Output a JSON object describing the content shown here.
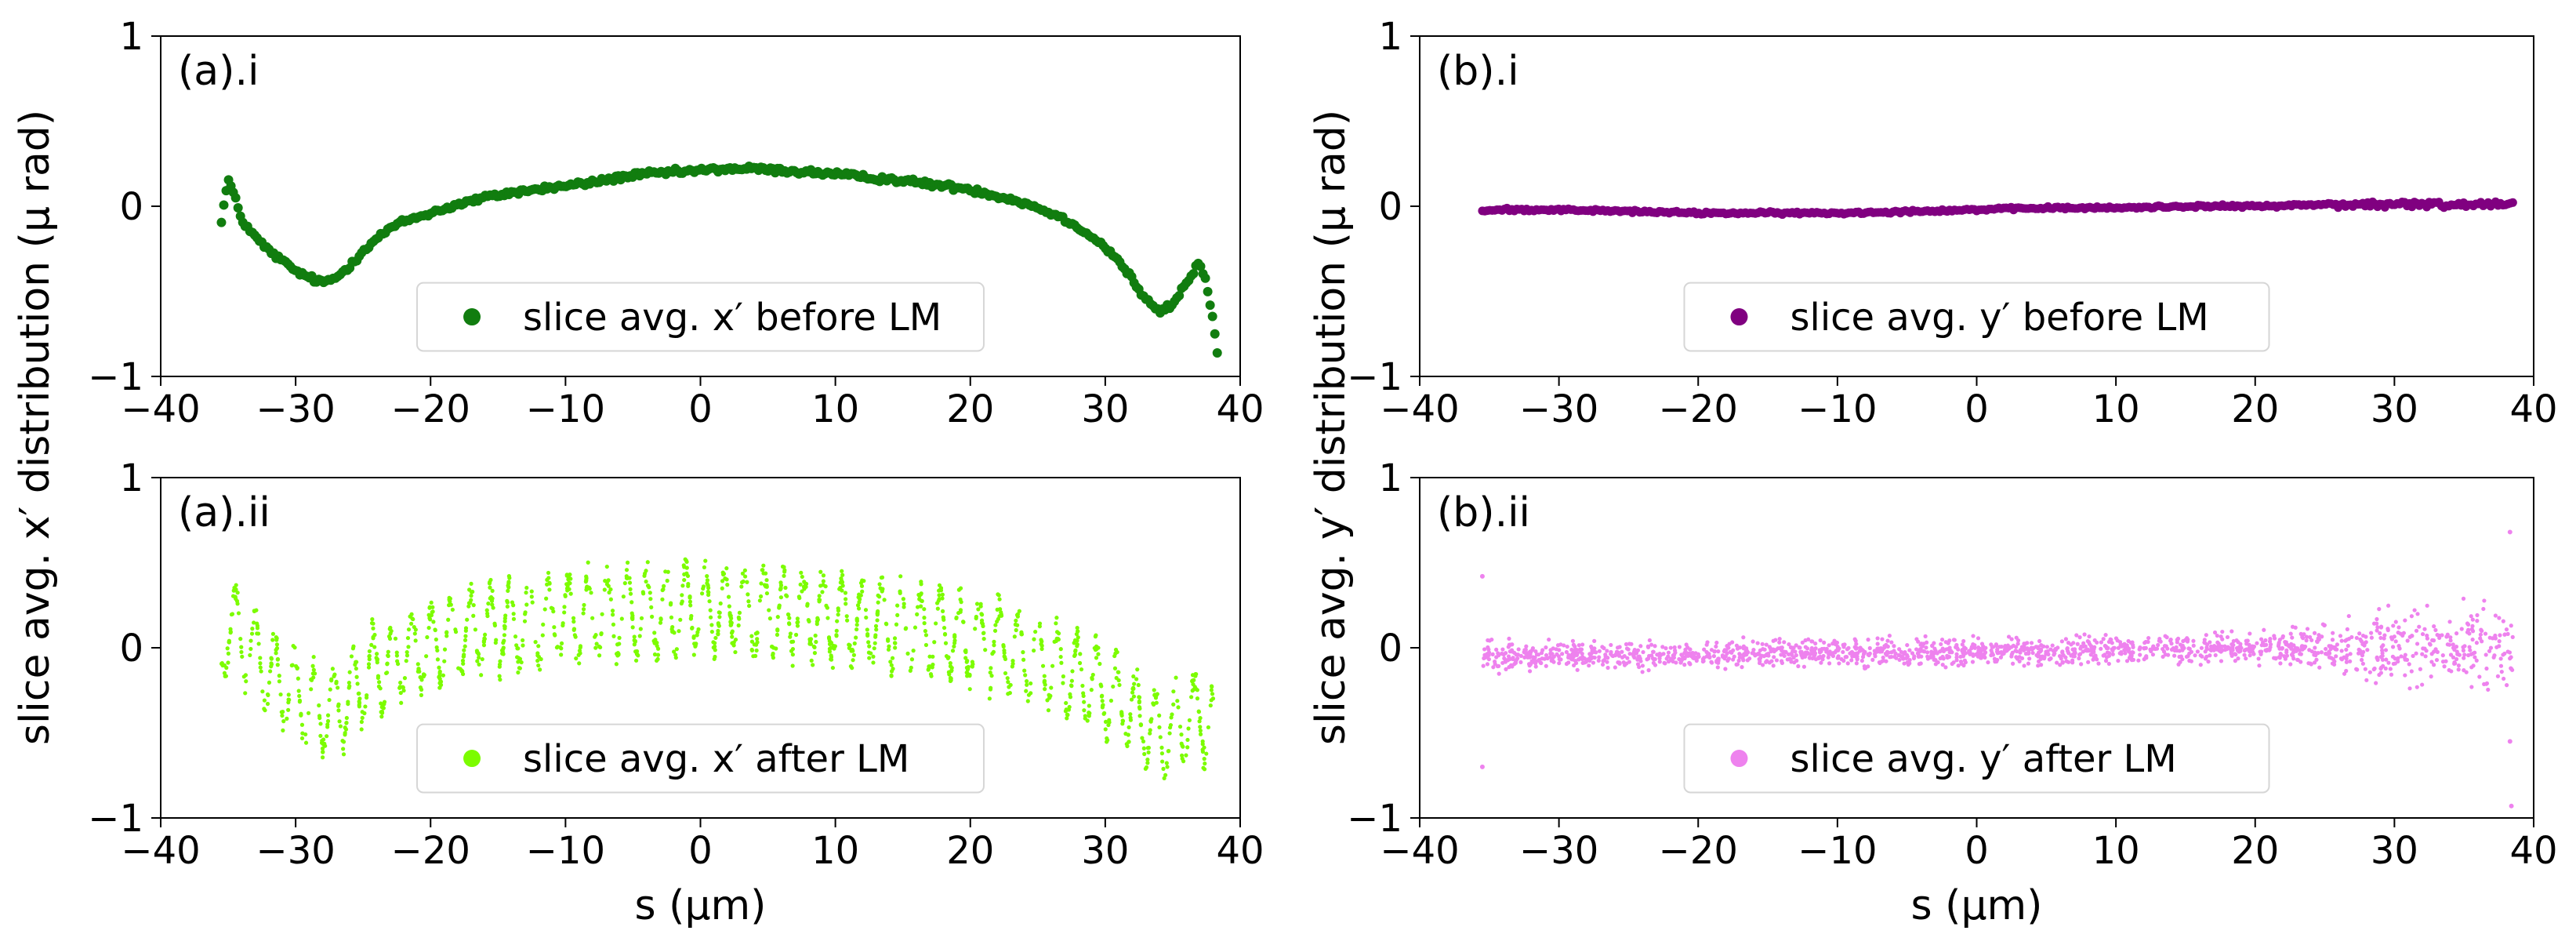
{
  "chart_data": [
    {
      "id": "a_i",
      "type": "scatter",
      "tag": "(a).i",
      "legend": "slice avg. x′ before LM",
      "legend_position": "lower-center",
      "color": "#117d0f",
      "marker": "dot-medium",
      "xlim": [
        -40,
        40
      ],
      "ylim": [
        -1,
        1
      ],
      "xticks": [
        "−40",
        "−30",
        "−20",
        "−10",
        "0",
        "10",
        "20",
        "30",
        "40"
      ],
      "yticks": [
        "−1",
        "0",
        "1"
      ],
      "x": [
        -35.5,
        -35.0,
        -34.5,
        -34.0,
        -33.0,
        -32.0,
        -31.0,
        -30.0,
        -29.0,
        -28.0,
        -27.0,
        -26.0,
        -25.0,
        -24.0,
        -23.0,
        -22.0,
        -20.0,
        -18.0,
        -16.0,
        -14.0,
        -12.0,
        -10.0,
        -8.0,
        -6.0,
        -4.0,
        -2.0,
        0.0,
        2.0,
        4.0,
        6.0,
        8.0,
        10.0,
        12.0,
        14.0,
        16.0,
        18.0,
        20.0,
        22.0,
        24.0,
        26.0,
        28.0,
        30.0,
        31.0,
        32.0,
        33.0,
        34.0,
        35.0,
        36.0,
        37.0,
        37.5,
        38.0,
        38.3
      ],
      "y": [
        -0.08,
        0.16,
        0.05,
        -0.08,
        -0.18,
        -0.26,
        -0.32,
        -0.38,
        -0.42,
        -0.45,
        -0.42,
        -0.35,
        -0.26,
        -0.19,
        -0.13,
        -0.09,
        -0.04,
        0.01,
        0.05,
        0.08,
        0.1,
        0.12,
        0.14,
        0.17,
        0.19,
        0.2,
        0.21,
        0.22,
        0.22,
        0.21,
        0.2,
        0.19,
        0.17,
        0.16,
        0.14,
        0.12,
        0.1,
        0.06,
        0.02,
        -0.04,
        -0.12,
        -0.24,
        -0.32,
        -0.43,
        -0.55,
        -0.62,
        -0.58,
        -0.45,
        -0.33,
        -0.45,
        -0.68,
        -0.85
      ]
    },
    {
      "id": "b_i",
      "type": "scatter",
      "tag": "(b).i",
      "legend": "slice avg. y′ before LM",
      "legend_position": "lower-center",
      "color": "#800080",
      "marker": "dot-medium",
      "xlim": [
        -40,
        40
      ],
      "ylim": [
        -1,
        1
      ],
      "xticks": [
        "−40",
        "−30",
        "−20",
        "−10",
        "0",
        "10",
        "20",
        "30",
        "40"
      ],
      "yticks": [
        "−1",
        "0",
        "1"
      ],
      "x": [
        -35.5,
        -34.0,
        -30.0,
        -25.0,
        -20.0,
        -15.0,
        -10.0,
        -5.0,
        0.0,
        5.0,
        10.0,
        15.0,
        20.0,
        25.0,
        30.0,
        35.0,
        38.5
      ],
      "y": [
        -0.03,
        -0.02,
        -0.02,
        -0.03,
        -0.04,
        -0.04,
        -0.04,
        -0.03,
        -0.02,
        -0.01,
        -0.01,
        0.0,
        0.0,
        0.01,
        0.01,
        0.01,
        0.02
      ]
    },
    {
      "id": "a_ii",
      "type": "scatter",
      "tag": "(a).ii",
      "legend": "slice avg. x′ after LM",
      "legend_position": "lower-center",
      "color": "#7cfc00",
      "marker": "dot-small",
      "xlim": [
        -40,
        40
      ],
      "ylim": [
        -1,
        1
      ],
      "xticks": [
        "−40",
        "−30",
        "−20",
        "−10",
        "0",
        "10",
        "20",
        "30",
        "40"
      ],
      "yticks": [
        "−1",
        "0",
        "1"
      ],
      "xlabel": "s (µm)",
      "x": [
        -35.5,
        -35.0,
        -34.0,
        -33.0,
        -32.0,
        -31.0,
        -30.0,
        -29.0,
        -28.0,
        -27.0,
        -26.0,
        -25.0,
        -24.0,
        -22.0,
        -20.0,
        -18.0,
        -16.0,
        -14.0,
        -12.0,
        -10.0,
        -8.0,
        -6.0,
        -4.0,
        -2.0,
        0.0,
        2.0,
        4.0,
        6.0,
        8.0,
        10.0,
        12.0,
        14.0,
        16.0,
        18.0,
        20.0,
        22.0,
        24.0,
        26.0,
        28.0,
        30.0,
        31.0,
        32.0,
        33.0,
        34.0,
        35.0,
        36.0,
        37.0,
        38.0
      ],
      "y": [
        -0.05,
        0.15,
        0.05,
        -0.05,
        -0.15,
        -0.22,
        -0.28,
        -0.33,
        -0.36,
        -0.35,
        -0.28,
        -0.2,
        -0.12,
        -0.04,
        0.02,
        0.07,
        0.1,
        0.13,
        0.15,
        0.17,
        0.19,
        0.2,
        0.21,
        0.22,
        0.22,
        0.22,
        0.21,
        0.2,
        0.19,
        0.17,
        0.15,
        0.13,
        0.11,
        0.08,
        0.05,
        0.01,
        -0.04,
        -0.1,
        -0.18,
        -0.26,
        -0.32,
        -0.38,
        -0.45,
        -0.5,
        -0.48,
        -0.42,
        -0.4,
        -0.45
      ],
      "oscillation_amplitude": 0.3
    },
    {
      "id": "b_ii",
      "type": "scatter",
      "tag": "(b).ii",
      "legend": "slice avg. y′ after LM",
      "legend_position": "lower-center",
      "color": "#ee82ee",
      "marker": "dot-small",
      "xlim": [
        -40,
        40
      ],
      "ylim": [
        -1,
        1
      ],
      "xticks": [
        "−40",
        "−30",
        "−20",
        "−10",
        "0",
        "10",
        "20",
        "30",
        "40"
      ],
      "yticks": [
        "−1",
        "0",
        "1"
      ],
      "xlabel": "s (µm)",
      "x": [
        -35.5,
        -30.0,
        -20.0,
        -10.0,
        0.0,
        10.0,
        20.0,
        25.0,
        30.0,
        35.0,
        38.5
      ],
      "y": [
        -0.05,
        -0.05,
        -0.04,
        -0.03,
        -0.02,
        -0.01,
        0.0,
        0.0,
        0.0,
        0.0,
        0.0
      ],
      "spread": [
        0.12,
        0.1,
        0.1,
        0.1,
        0.1,
        0.1,
        0.12,
        0.18,
        0.28,
        0.32,
        0.35
      ]
    }
  ],
  "ylabel_left": "slice avg. x′ distribution (µ rad)",
  "ylabel_right": "slice avg. y′ distribution (µ rad)"
}
